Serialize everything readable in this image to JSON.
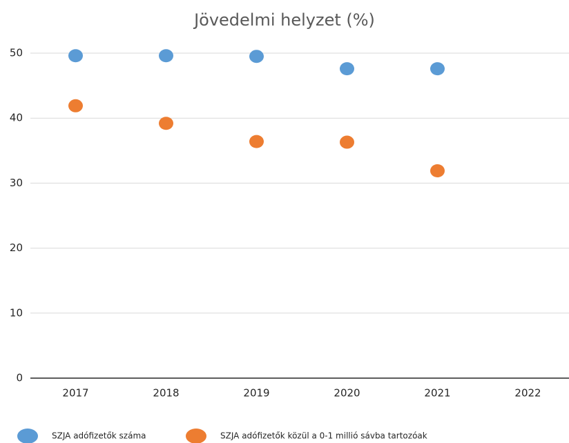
{
  "chart_data": {
    "type": "scatter",
    "title": "Jövedelmi helyzet (%)",
    "categories": [
      "2017",
      "2018",
      "2019",
      "2020",
      "2021",
      "2022"
    ],
    "series": [
      {
        "name": "SZJA adófizetők száma",
        "color": "#5b9bd5",
        "values": [
          49.6,
          49.6,
          49.5,
          47.6,
          47.6,
          null
        ]
      },
      {
        "name": "SZJA adófizetők közül a 0-1 millió sávba tartozóak",
        "color": "#ed7d31",
        "values": [
          41.9,
          39.2,
          36.4,
          36.3,
          31.9,
          null
        ]
      }
    ],
    "ylim": [
      0,
      50
    ],
    "yticks": [
      0,
      10,
      20,
      30,
      40,
      50
    ],
    "grid": true,
    "legend": "bottom"
  }
}
